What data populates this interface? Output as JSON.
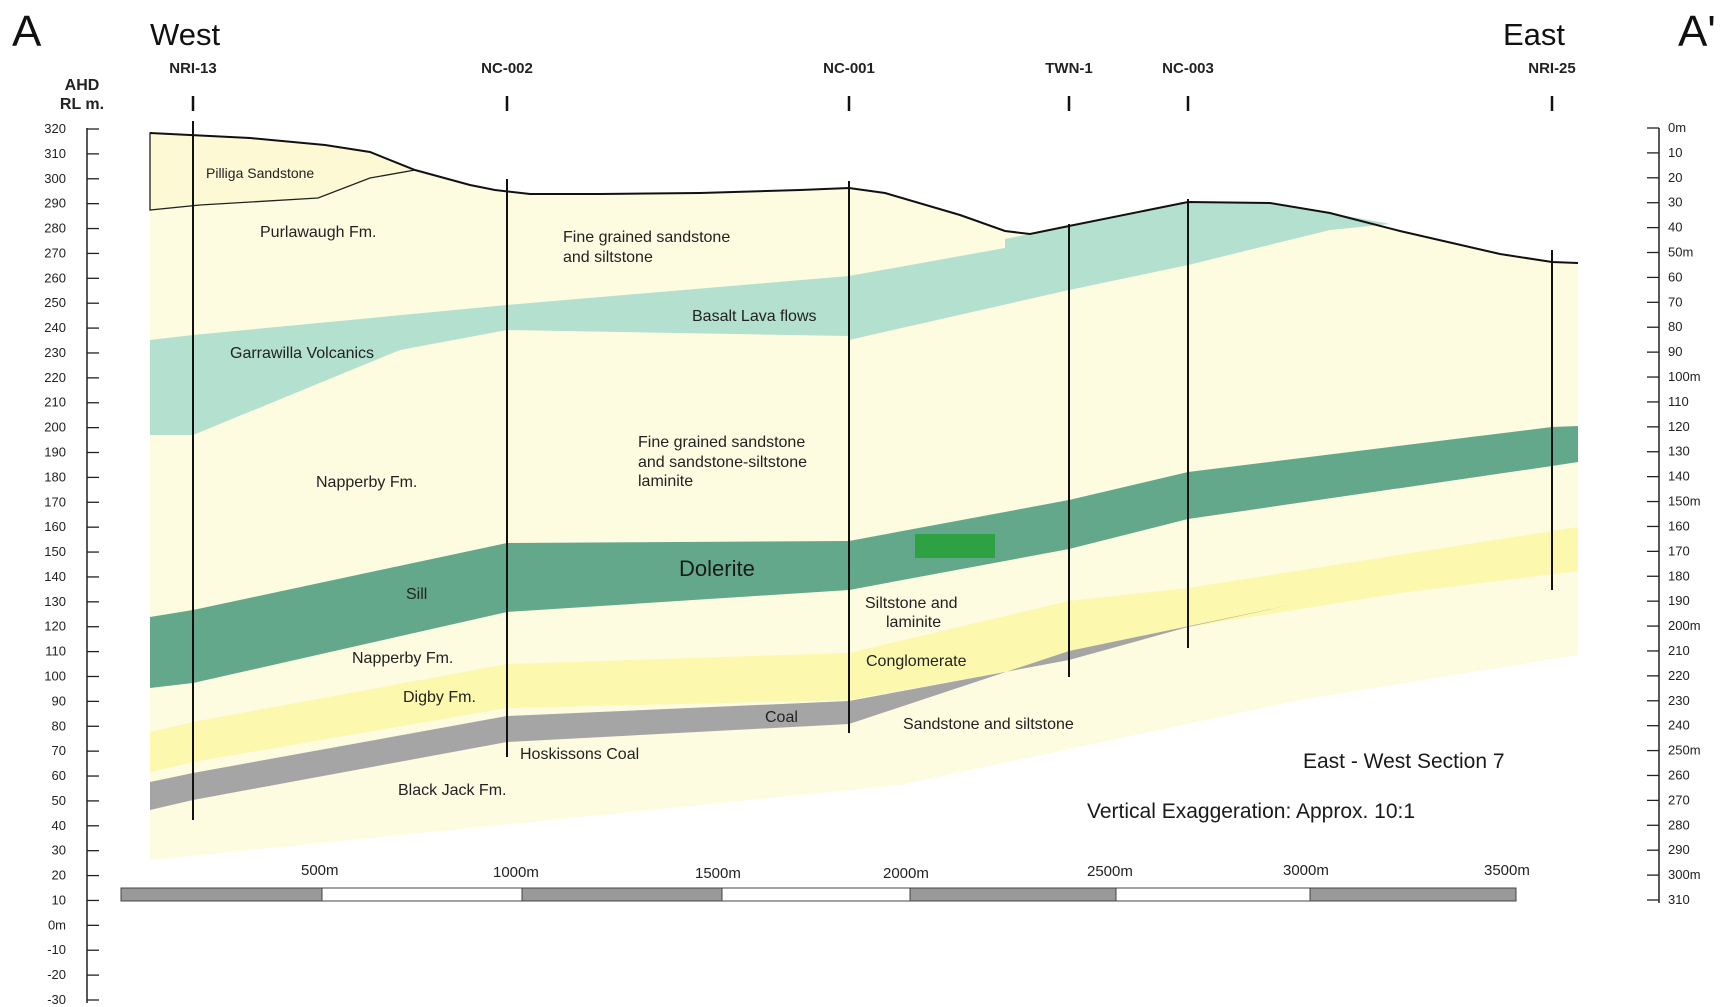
{
  "corners": {
    "left": "A",
    "right": "A'"
  },
  "directions": {
    "west": "West",
    "east": "East"
  },
  "wells": [
    "NRI-13",
    "NC-002",
    "NC-001",
    "TWN-1",
    "NC-003",
    "NRI-25"
  ],
  "left_axis": {
    "title_line1": "AHD",
    "title_line2": "RL m.",
    "ticks": [
      "320",
      "310",
      "300",
      "290",
      "280",
      "270",
      "260",
      "250",
      "240",
      "230",
      "220",
      "210",
      "200",
      "190",
      "180",
      "170",
      "160",
      "150",
      "140",
      "130",
      "120",
      "110",
      "100",
      "90",
      "80",
      "70",
      "60",
      "50",
      "40",
      "30",
      "20",
      "10",
      "0m",
      "-10",
      "-20",
      "-30"
    ]
  },
  "right_axis": {
    "ticks": [
      "0m",
      "10",
      "20",
      "30",
      "40",
      "50m",
      "60",
      "70",
      "80",
      "90",
      "100m",
      "110",
      "120",
      "130",
      "140",
      "150m",
      "160",
      "170",
      "180",
      "190",
      "200m",
      "210",
      "220",
      "230",
      "240",
      "250m",
      "260",
      "270",
      "280",
      "290",
      "300m",
      "310"
    ]
  },
  "units": {
    "pilliga": "Pilliga Sandstone",
    "purlawaugh": "Purlawaugh Fm.",
    "fine1_line1": "Fine grained sandstone",
    "fine1_line2": "and siltstone",
    "basalt": "Basalt Lava flows",
    "garrawilla": "Garrawilla Volcanics",
    "fine2_line1": "Fine grained sandstone",
    "fine2_line2": "and sandstone-siltstone",
    "fine2_line3": "laminite",
    "napperby_upper": "Napperby Fm.",
    "dolerite": "Dolerite",
    "sill": "Sill",
    "siltstone_line1": "Siltstone and",
    "siltstone_line2": "laminite",
    "napperby_lower": "Napperby Fm.",
    "conglomerate": "Conglomerate",
    "digby": "Digby Fm.",
    "coal": "Coal",
    "sandstone_siltstone": "Sandstone and siltstone",
    "hoskissons": "Hoskissons Coal",
    "black_jack": "Black Jack Fm."
  },
  "notes": {
    "section_title": "East - West Section 7",
    "exaggeration": "Vertical Exaggeration: Approx. 10:1"
  },
  "scale_bar": {
    "labels": [
      "500m",
      "1000m",
      "1500m",
      "2000m",
      "2500m",
      "3000m",
      "3500m"
    ]
  },
  "colors": {
    "cream": "#fdfbe0",
    "volcanic": "#b4e0cf",
    "dolerite": "#63a88b",
    "yellow": "#fcf8ad",
    "coal": "#a5a5a5",
    "highlight": "#2ea243"
  }
}
